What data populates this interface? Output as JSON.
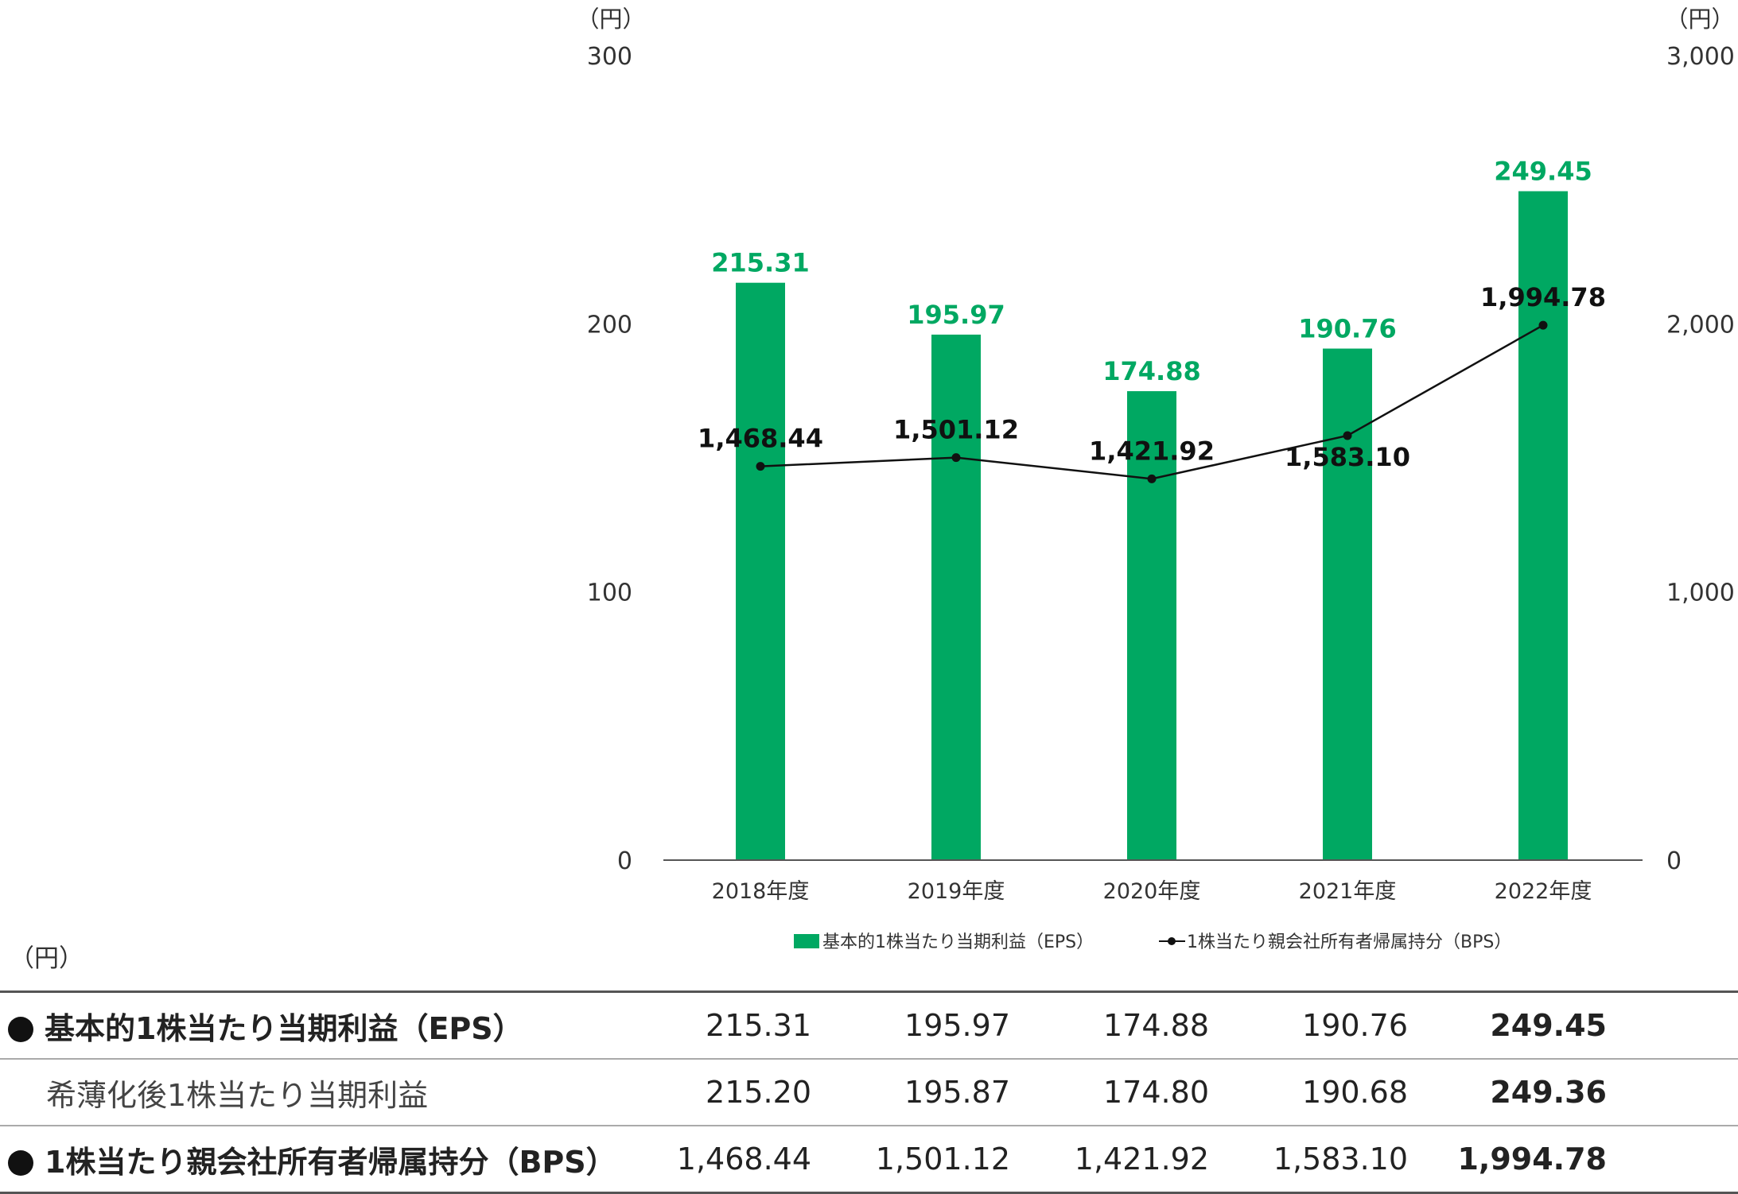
{
  "chart_data": {
    "type": "bar+line",
    "categories": [
      "2018年度",
      "2019年度",
      "2020年度",
      "2021年度",
      "2022年度"
    ],
    "series": [
      {
        "name": "基本的1株当たり当期利益（EPS）",
        "type": "bar",
        "axis": "left",
        "color": "#00a862",
        "values": [
          215.31,
          195.97,
          174.88,
          190.76,
          249.45
        ],
        "labels": [
          "215.31",
          "195.97",
          "174.88",
          "190.76",
          "249.45"
        ]
      },
      {
        "name": "1株当たり親会社所有者帰属持分（BPS）",
        "type": "line",
        "axis": "right",
        "color": "#111111",
        "values": [
          1468.44,
          1501.12,
          1421.92,
          1583.1,
          1994.78
        ],
        "labels": [
          "1,468.44",
          "1,501.12",
          "1,421.92",
          "1,583.10",
          "1,994.78"
        ]
      }
    ],
    "y_left": {
      "unit": "（円）",
      "ylim": [
        0,
        300
      ],
      "ticks": [
        "0",
        "100",
        "200",
        "300"
      ]
    },
    "y_right": {
      "unit": "（円）",
      "ylim": [
        0,
        3000
      ],
      "ticks": [
        "0",
        "1,000",
        "2,000",
        "3,000"
      ]
    },
    "legend_position": "bottom",
    "grid": false
  },
  "table": {
    "unit": "（円）",
    "rows": [
      {
        "label": "基本的1株当たり当期利益（EPS）",
        "bold": true,
        "bullet": true,
        "values": [
          "215.31",
          "195.97",
          "174.88",
          "190.76",
          "249.45"
        ]
      },
      {
        "label": "希薄化後1株当たり当期利益",
        "bold": false,
        "bullet": false,
        "values": [
          "215.20",
          "195.87",
          "174.80",
          "190.68",
          "249.36"
        ]
      },
      {
        "label": "1株当たり親会社所有者帰属持分（BPS）",
        "bold": true,
        "bullet": true,
        "values": [
          "1,468.44",
          "1,501.12",
          "1,421.92",
          "1,583.10",
          "1,994.78"
        ]
      }
    ]
  }
}
